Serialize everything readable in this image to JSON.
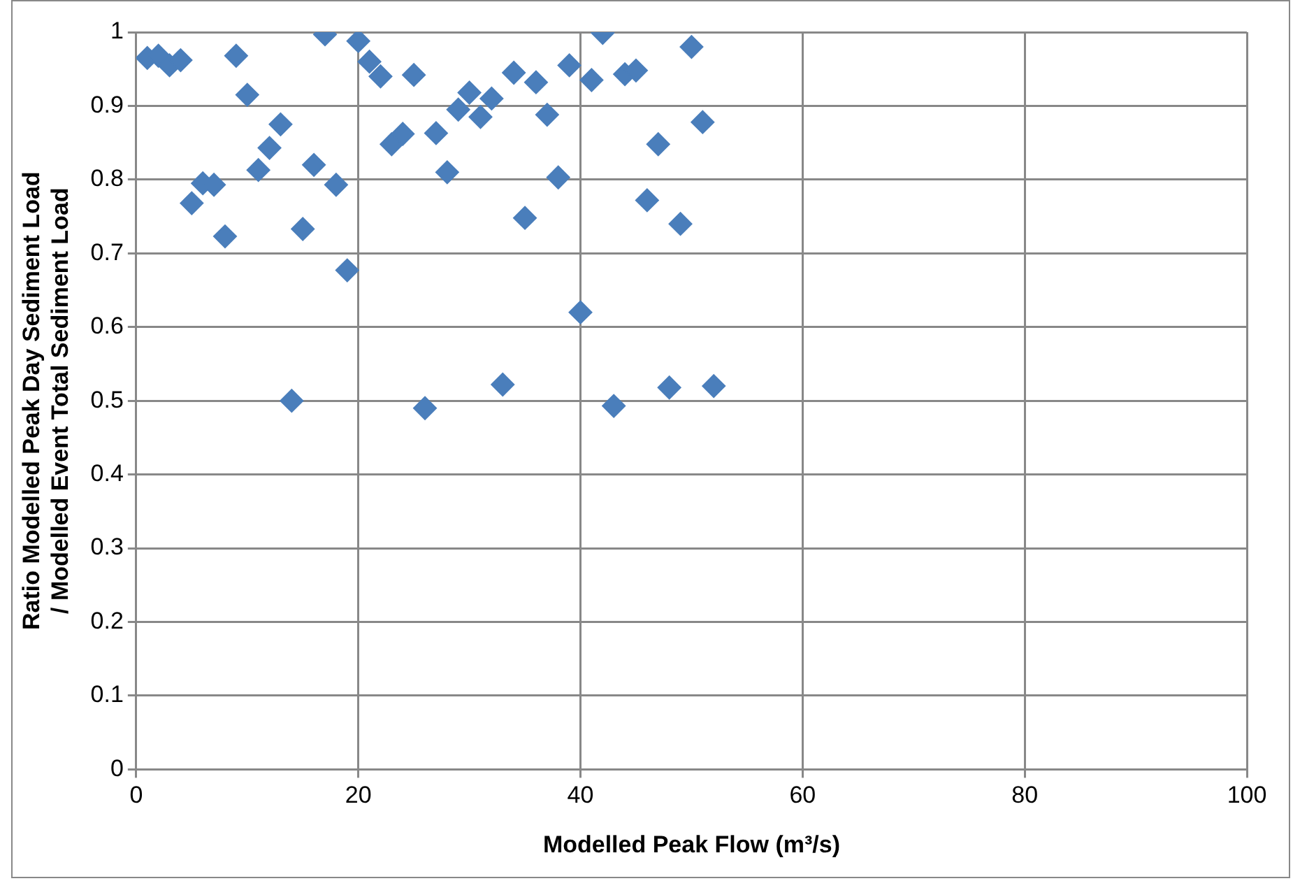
{
  "chart_data": {
    "type": "scatter",
    "xlabel": "Modelled Peak Flow (m³/s)",
    "ylabel": "Ratio Modelled Peak Day Sediment Load / Modelled Event Total Sediment Load",
    "x": [
      1,
      2,
      3,
      4,
      5,
      6,
      7,
      8,
      9,
      10,
      11,
      12,
      13,
      14,
      15,
      16,
      17,
      18,
      19,
      20,
      21,
      22,
      23,
      24,
      25,
      26,
      27,
      28,
      29,
      30,
      31,
      32,
      33,
      34,
      35,
      36,
      37,
      38,
      39,
      40,
      41,
      42,
      43,
      44,
      45,
      46,
      47,
      48,
      49,
      50,
      51,
      52
    ],
    "values": [
      0.965,
      0.968,
      0.955,
      0.962,
      0.768,
      0.795,
      0.793,
      0.723,
      0.968,
      0.915,
      0.813,
      0.843,
      0.875,
      0.5,
      0.733,
      0.82,
      0.997,
      0.793,
      0.677,
      0.988,
      0.96,
      0.94,
      0.848,
      0.862,
      0.942,
      0.49,
      0.863,
      0.81,
      0.895,
      0.918,
      0.885,
      0.91,
      0.522,
      0.945,
      0.748,
      0.932,
      0.888,
      0.803,
      0.955,
      0.62,
      0.935,
      0.999,
      0.493,
      0.943,
      0.948,
      0.772,
      0.848,
      0.518,
      0.74,
      0.98,
      0.878,
      0.52
    ],
    "color": "#4a7ebb",
    "marker": "diamond",
    "xlim": [
      0,
      100
    ],
    "xticks": [
      0,
      20,
      40,
      60,
      80,
      100
    ],
    "ylim": [
      0,
      1
    ],
    "yticks": [
      0,
      0.1,
      0.2,
      0.3,
      0.4,
      0.5,
      0.6,
      0.7,
      0.8,
      0.9,
      1
    ],
    "grid": true,
    "legend": false
  }
}
